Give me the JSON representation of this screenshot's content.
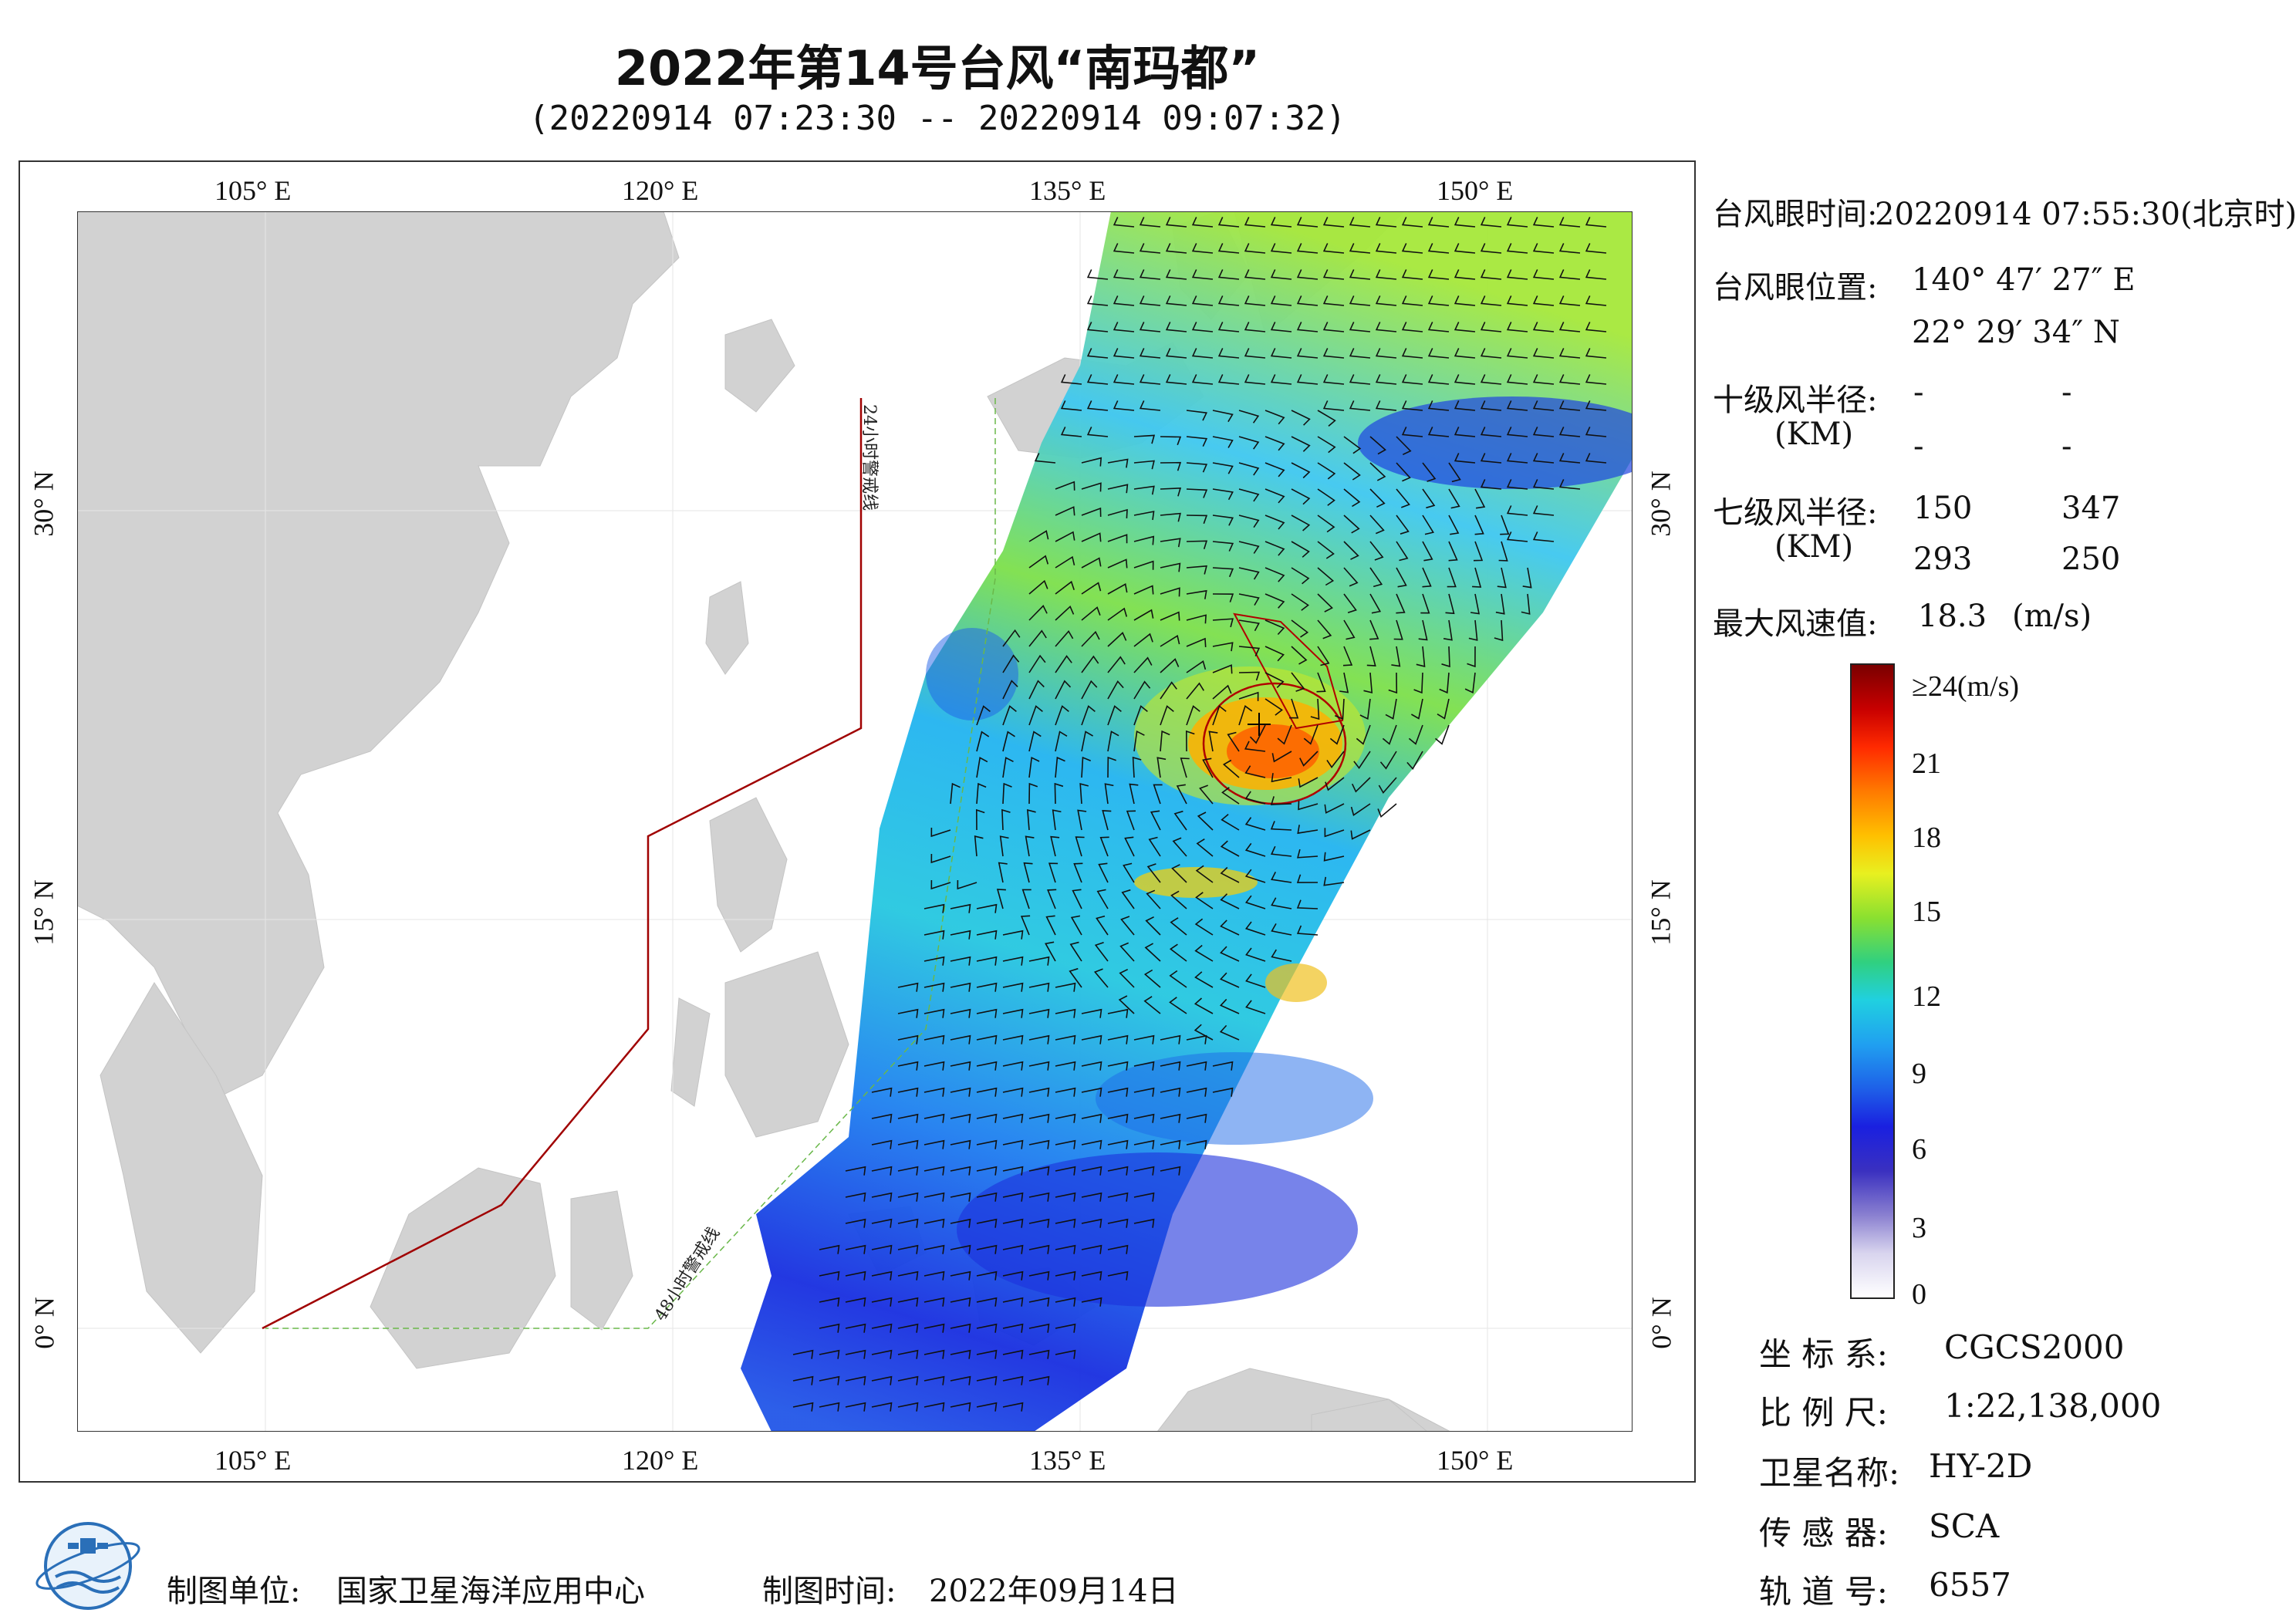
{
  "title": "2022年第14号台风“南玛都”",
  "subtitle": "(20220914 07:23:30 -- 20220914 09:07:32)",
  "axes": {
    "lon_labels": [
      "105° E",
      "120° E",
      "135° E",
      "150° E"
    ],
    "lat_labels": [
      "30° N",
      "15° N",
      "0° N"
    ]
  },
  "warning_lines": {
    "line24_label": "24小时警戒线",
    "line48_label": "48小时警戒线"
  },
  "info": {
    "eye_time_label": "台风眼时间:",
    "eye_time_value": "20220914 07:55:30(北京时)",
    "eye_pos_label": "台风眼位置:",
    "eye_lon": "140° 47′ 27″ E",
    "eye_lat": "22° 29′ 34″ N",
    "r10_label": "十级风半径:",
    "r10_unit": "(KM)",
    "r10_values": [
      "-",
      "-",
      "-",
      "-"
    ],
    "r7_label": "七级风半径:",
    "r7_unit": "(KM)",
    "r7_values": [
      "150",
      "347",
      "293",
      "250"
    ],
    "maxwind_label": "最大风速值:",
    "maxwind_value": "18.3",
    "maxwind_unit": "(m/s)"
  },
  "colorbar": {
    "labels": [
      "≥24(m/s)",
      "21",
      "18",
      "15",
      "12",
      "9",
      "6",
      "3",
      "0"
    ],
    "colors": [
      "#7a0000",
      "#c80000",
      "#ff2a00",
      "#ff7a00",
      "#ffc000",
      "#e8f020",
      "#8ae030",
      "#30d080",
      "#20d0e0",
      "#20a0f0",
      "#1e60e8",
      "#1a20e0",
      "#3a30c0",
      "#8a80d0",
      "#d8d4ee",
      "#ffffff"
    ]
  },
  "meta": {
    "crs_label": "坐 标 系:",
    "crs_value": "CGCS2000",
    "scale_label": "比 例 尺:",
    "scale_value": "1:22,138,000",
    "sat_label": "卫星名称:",
    "sat_value": "HY-2D",
    "sensor_label": "传 感 器:",
    "sensor_value": "SCA",
    "orbit_label": "轨 道 号:",
    "orbit_value": "6557"
  },
  "footer": {
    "org_label": "制图单位:",
    "org_value": "国家卫星海洋应用中心",
    "time_label": "制图时间:",
    "time_value": "2022年09月14日"
  }
}
